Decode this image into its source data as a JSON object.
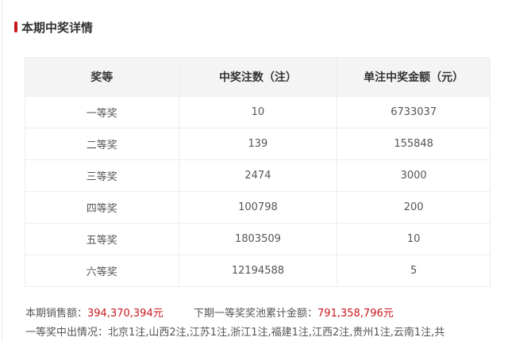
{
  "section_title": "本期中奖详情",
  "accent_color": "#c8161d",
  "table": {
    "headers": [
      "奖等",
      "中奖注数（注）",
      "单注中奖金额（元）"
    ],
    "rows": [
      [
        "一等奖",
        "10",
        "6733037"
      ],
      [
        "二等奖",
        "139",
        "155848"
      ],
      [
        "三等奖",
        "2474",
        "3000"
      ],
      [
        "四等奖",
        "100798",
        "200"
      ],
      [
        "五等奖",
        "1803509",
        "10"
      ],
      [
        "六等奖",
        "12194588",
        "5"
      ]
    ]
  },
  "summary": {
    "sales_label": "本期销售额：",
    "sales_value": "394,370,394元",
    "pool_label": "下期一等奖奖池累计金额：",
    "pool_value": "791,358,796元",
    "first_prize_text": "一等奖中出情况：北京1注,山西2注,江苏1注,浙江1注,福建1注,江西2注,贵州1注,云南1注,共"
  }
}
